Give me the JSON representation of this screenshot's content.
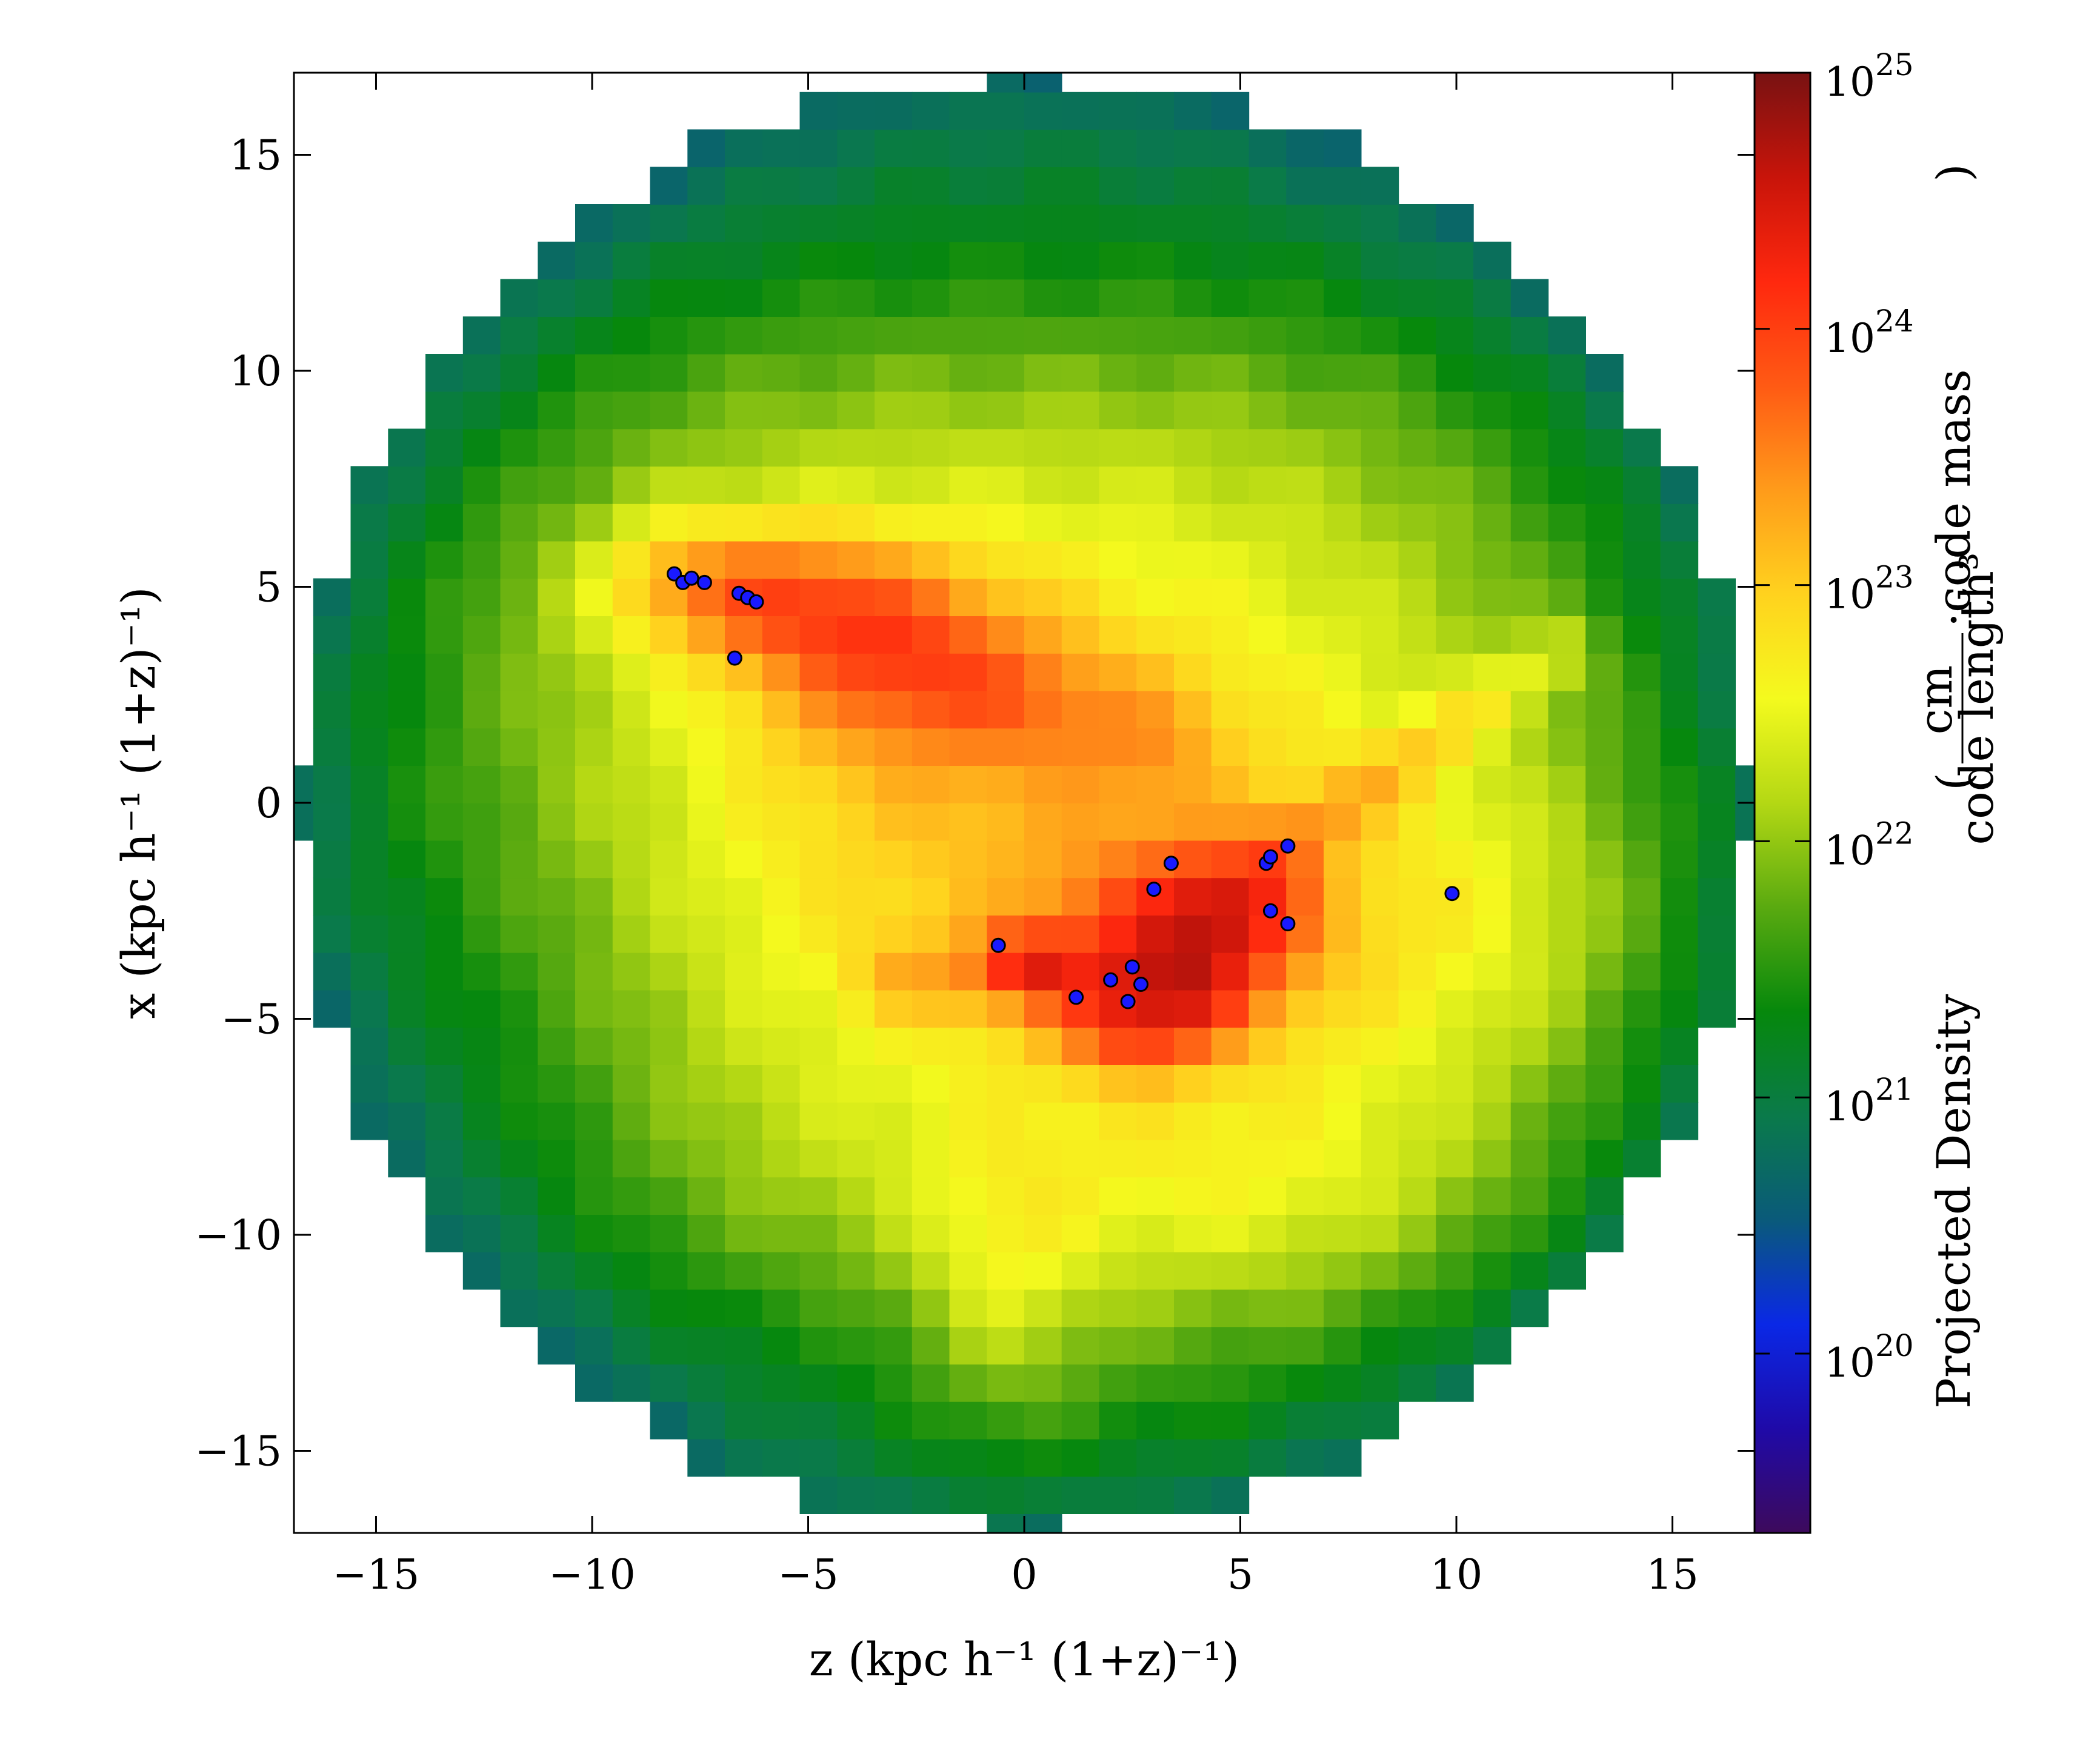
{
  "chart_data": {
    "type": "heatmap",
    "title": "",
    "xlabel": "z  (kpc h⁻¹ (1+z)⁻¹)",
    "ylabel": "x  (kpc h⁻¹ (1+z)⁻¹)",
    "xlim": [
      -16.9,
      16.9
    ],
    "ylim": [
      -16.9,
      16.9
    ],
    "x_ticks": [
      {
        "value": -15,
        "label": "−15"
      },
      {
        "value": -10,
        "label": "−10"
      },
      {
        "value": -5,
        "label": "−5"
      },
      {
        "value": 0,
        "label": "0"
      },
      {
        "value": 5,
        "label": "5"
      },
      {
        "value": 10,
        "label": "10"
      },
      {
        "value": 15,
        "label": "15"
      }
    ],
    "y_ticks": [
      {
        "value": -15,
        "label": "−15"
      },
      {
        "value": -10,
        "label": "−10"
      },
      {
        "value": -5,
        "label": "−5"
      },
      {
        "value": 0,
        "label": "0"
      },
      {
        "value": 5,
        "label": "5"
      },
      {
        "value": 10,
        "label": "10"
      },
      {
        "value": 15,
        "label": "15"
      }
    ],
    "colorbar": {
      "label": "Projected Density",
      "unit_numerator": "cm",
      "unit_denominator": "code length³",
      "unit_suffix": "·code mass",
      "scale": "log",
      "range_log10": [
        19.3,
        25.0
      ],
      "ticks": [
        {
          "exp": 25,
          "label": "10",
          "sup": "25"
        },
        {
          "exp": 24,
          "label": "10",
          "sup": "24"
        },
        {
          "exp": 23,
          "label": "10",
          "sup": "23"
        },
        {
          "exp": 22,
          "label": "10",
          "sup": "22"
        },
        {
          "exp": 21,
          "label": "10",
          "sup": "21"
        },
        {
          "exp": 20,
          "label": "10",
          "sup": "20"
        }
      ],
      "colormap": [
        "#3d0a5c",
        "#1f0aa8",
        "#0a28e6",
        "#0a5a7a",
        "#0a7a4a",
        "#06880c",
        "#5aaa10",
        "#b4d814",
        "#f4fa1e",
        "#ffd21e",
        "#ff9b1a",
        "#ff5a14",
        "#ff280e",
        "#c8140a",
        "#781212"
      ]
    },
    "density_field": {
      "grid_spacing": 0.866,
      "disk_radius": 16.9,
      "background_log10": 22.5,
      "edge_falloff_log10": 1.7,
      "features": [
        {
          "type": "blob",
          "x": 3.5,
          "y": -3.5,
          "rx": 3.0,
          "ry": 2.2,
          "amp": 1.5
        },
        {
          "type": "blob",
          "x": 5.0,
          "y": -2.2,
          "rx": 1.6,
          "ry": 1.3,
          "amp": 0.8
        },
        {
          "type": "blob",
          "x": 0.0,
          "y": -3.6,
          "rx": 1.0,
          "ry": 0.7,
          "amp": 0.9
        },
        {
          "type": "blob",
          "x": 2.5,
          "y": -5.5,
          "rx": 1.6,
          "ry": 0.9,
          "amp": 0.7
        },
        {
          "type": "blob",
          "x": -6.0,
          "y": 5.0,
          "rx": 4.0,
          "ry": 1.6,
          "amp": 0.9
        },
        {
          "type": "blob",
          "x": -3.0,
          "y": 3.0,
          "rx": 3.5,
          "ry": 2.2,
          "amp": 0.7
        },
        {
          "type": "blob",
          "x": 0.0,
          "y": 0.0,
          "rx": 7.0,
          "ry": 5.0,
          "amp": 0.6
        },
        {
          "type": "blob",
          "x": 10.5,
          "y": -3.0,
          "rx": 5.0,
          "ry": 4.0,
          "amp": 0.5
        },
        {
          "type": "blob",
          "x": 6.0,
          "y": -9.0,
          "rx": 7.0,
          "ry": 2.8,
          "amp": 0.45
        },
        {
          "type": "blob",
          "x": -0.5,
          "y": -11.5,
          "rx": 2.0,
          "ry": 3.2,
          "amp": 0.55
        },
        {
          "type": "blob",
          "x": 0.0,
          "y": 12.5,
          "rx": 10.0,
          "ry": 4.0,
          "amp": -0.45
        },
        {
          "type": "blob",
          "x": -11.5,
          "y": -5.0,
          "rx": 4.5,
          "ry": 6.5,
          "amp": -0.3
        },
        {
          "type": "blob",
          "x": -4.5,
          "y": -12.5,
          "rx": 6.5,
          "ry": 2.8,
          "amp": -0.25
        },
        {
          "type": "filament",
          "x1": -8.0,
          "y1": 5.2,
          "x2": 3.0,
          "y2": 1.5,
          "width": 1.6,
          "amp": 0.45
        },
        {
          "type": "filament",
          "x1": 6.0,
          "y1": -1.0,
          "x2": 12.5,
          "y2": 3.5,
          "width": 0.8,
          "amp": 0.55
        },
        {
          "type": "filament",
          "x1": -3.0,
          "y1": -4.0,
          "x2": 4.0,
          "y2": -4.5,
          "width": 1.0,
          "amp": 0.5
        }
      ]
    },
    "point_markers": {
      "color": "#1a1aff",
      "points": [
        {
          "x": -8.1,
          "y": 5.3
        },
        {
          "x": -7.9,
          "y": 5.1
        },
        {
          "x": -7.7,
          "y": 5.2
        },
        {
          "x": -7.4,
          "y": 5.1
        },
        {
          "x": -6.6,
          "y": 4.85
        },
        {
          "x": -6.4,
          "y": 4.75
        },
        {
          "x": -6.2,
          "y": 4.65
        },
        {
          "x": -6.7,
          "y": 3.35
        },
        {
          "x": -0.6,
          "y": -3.3
        },
        {
          "x": 1.2,
          "y": -4.5
        },
        {
          "x": 2.0,
          "y": -4.1
        },
        {
          "x": 2.5,
          "y": -3.8
        },
        {
          "x": 2.7,
          "y": -4.2
        },
        {
          "x": 2.4,
          "y": -4.6
        },
        {
          "x": 3.0,
          "y": -2.0
        },
        {
          "x": 3.4,
          "y": -1.4
        },
        {
          "x": 5.6,
          "y": -1.4
        },
        {
          "x": 5.7,
          "y": -1.25
        },
        {
          "x": 6.1,
          "y": -1.0
        },
        {
          "x": 5.7,
          "y": -2.5
        },
        {
          "x": 6.1,
          "y": -2.8
        },
        {
          "x": 9.9,
          "y": -2.1
        }
      ]
    }
  }
}
